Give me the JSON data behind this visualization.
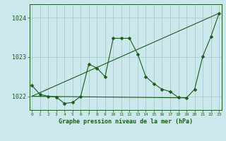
{
  "title": "Graphe pression niveau de la mer (hPa)",
  "bg_color": "#cce8ec",
  "grid_color": "#aacccc",
  "line_color": "#1a5c1a",
  "main_line": {
    "x": [
      0,
      1,
      2,
      3,
      4,
      5,
      6,
      7,
      8,
      9,
      10,
      11,
      12,
      13,
      14,
      15,
      16,
      17,
      18,
      19,
      20,
      21,
      22,
      23
    ],
    "y": [
      1022.28,
      1022.05,
      1022.0,
      1021.98,
      1021.82,
      1021.84,
      1022.0,
      1022.82,
      1022.72,
      1022.5,
      1023.48,
      1023.48,
      1023.48,
      1023.08,
      1022.5,
      1022.32,
      1022.18,
      1022.12,
      1021.97,
      1021.96,
      1022.18,
      1023.02,
      1023.52,
      1024.12
    ]
  },
  "trend_line": {
    "x": [
      0,
      23
    ],
    "y": [
      1022.0,
      1024.12
    ]
  },
  "flat_line": {
    "x": [
      0,
      19
    ],
    "y": [
      1022.0,
      1021.96
    ]
  },
  "xlim": [
    -0.3,
    23.3
  ],
  "ylim": [
    1021.65,
    1024.35
  ],
  "yticks": [
    1022,
    1023,
    1024
  ],
  "xticks": [
    0,
    1,
    2,
    3,
    4,
    5,
    6,
    7,
    8,
    9,
    10,
    11,
    12,
    13,
    14,
    15,
    16,
    17,
    18,
    19,
    20,
    21,
    22,
    23
  ],
  "markersize": 2.5
}
